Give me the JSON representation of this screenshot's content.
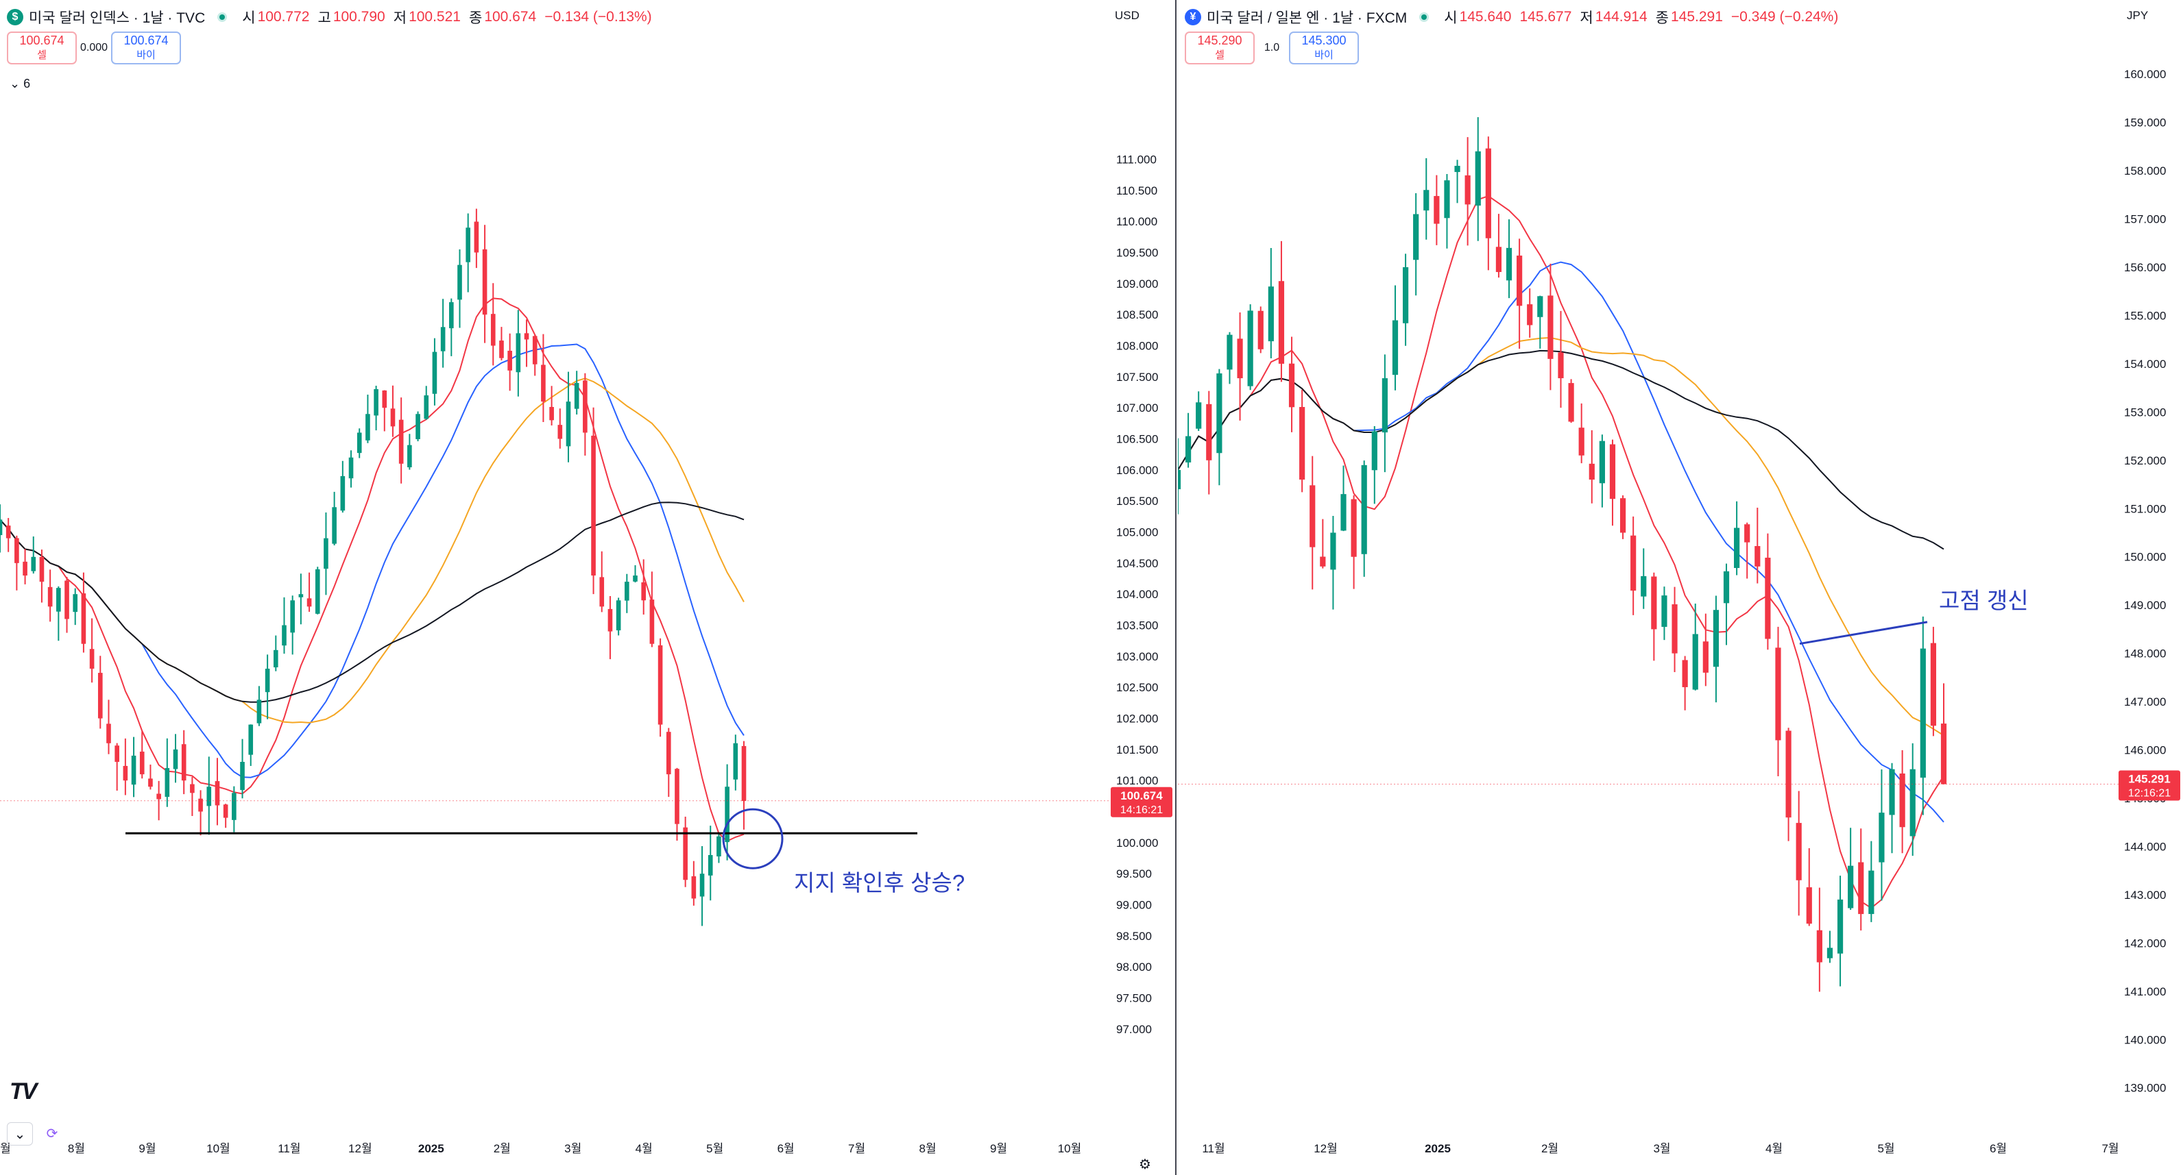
{
  "left": {
    "title": "미국 달러 인덱스 · 1날 · TVC",
    "icon_text": "$",
    "icon_color": "#089981",
    "ohlc": [
      {
        "k": "시",
        "v": "100.772"
      },
      {
        "k": "고",
        "v": "100.790"
      },
      {
        "k": "저",
        "v": "100.521"
      },
      {
        "k": "종",
        "v": "100.674"
      },
      {
        "k": "",
        "v": "−0.134 (−0.13%)"
      }
    ],
    "sell_price": "100.674",
    "sell_label": "셀",
    "spread": "0.000",
    "buy_price": "100.674",
    "buy_label": "바이",
    "collapse_label": "6",
    "currency": "USD",
    "price_tag": "100.674",
    "timer_tag": "14:16:21",
    "annotation": "지지 확인후 상승?"
  },
  "right": {
    "title": "미국 달러 / 일본 엔 · 1날 · FXCM",
    "icon_text": "¥",
    "icon_color": "#2962ff",
    "ohlc": [
      {
        "k": "시",
        "v": "145.640"
      },
      {
        "k": "",
        "v": "145.677"
      },
      {
        "k": "저",
        "v": "144.914"
      },
      {
        "k": "종",
        "v": "145.291"
      },
      {
        "k": "",
        "v": "−0.349 (−0.24%)"
      }
    ],
    "sell_price": "145.290",
    "sell_label": "셀",
    "spread": "1.0",
    "buy_price": "145.300",
    "buy_label": "바이",
    "currency": "JPY",
    "price_tag": "145.291",
    "timer_tag": "12:16:21",
    "annotation": "고점 갱신"
  },
  "chart_data": [
    {
      "type": "candlestick",
      "title": "미국 달러 인덱스",
      "ylim": [
        96.8,
        111.8
      ],
      "y_ticks": [
        "97.000",
        "97.500",
        "98.000",
        "98.500",
        "99.000",
        "99.500",
        "100.000",
        "100.500",
        "101.000",
        "101.500",
        "102.000",
        "102.500",
        "103.000",
        "103.500",
        "104.000",
        "104.500",
        "105.000",
        "105.500",
        "106.000",
        "106.500",
        "107.000",
        "107.500",
        "108.000",
        "108.500",
        "109.000",
        "109.500",
        "110.000",
        "110.500",
        "111.000"
      ],
      "x_ticks": [
        "월",
        "8월",
        "9월",
        "10월",
        "11월",
        "12월",
        "2025",
        "2월",
        "3월",
        "4월",
        "5월",
        "6월",
        "7월",
        "8월",
        "9월",
        "10월"
      ],
      "series": [
        {
          "name": "close",
          "values": [
            105.2,
            104.9,
            104.5,
            104.3,
            104.6,
            104.2,
            103.8,
            104.1,
            103.6,
            104.0,
            103.2,
            102.8,
            102.0,
            101.6,
            101.3,
            101.0,
            101.4,
            101.1,
            100.9,
            100.7,
            101.2,
            101.5,
            101.0,
            100.8,
            100.5,
            100.9,
            100.6,
            100.4,
            100.8,
            101.3,
            101.9,
            102.3,
            102.8,
            103.1,
            103.5,
            103.9,
            104.0,
            103.8,
            104.4,
            104.9,
            105.4,
            105.9,
            106.2,
            106.6,
            106.9,
            107.3,
            107.0,
            106.7,
            106.1,
            106.4,
            106.9,
            107.2,
            107.9,
            108.3,
            108.7,
            109.3,
            109.9,
            109.5,
            108.5,
            108.0,
            107.8,
            107.6,
            108.2,
            108.1,
            107.7,
            107.1,
            106.8,
            106.5,
            107.1,
            107.4,
            106.6,
            104.3,
            103.8,
            103.4,
            103.9,
            104.2,
            104.3,
            103.9,
            103.2,
            101.9,
            101.1,
            100.3,
            99.4,
            99.1,
            99.5,
            99.8,
            100.1,
            100.9,
            101.6,
            100.67
          ]
        }
      ],
      "ma": [
        {
          "name": "MA20",
          "color": "#f23645"
        },
        {
          "name": "MA50",
          "color": "#2962ff"
        },
        {
          "name": "MA100",
          "color": "#f5a623"
        },
        {
          "name": "MA200",
          "color": "#131722"
        }
      ],
      "horizontal_line": 100.15,
      "last_price": 100.674
    },
    {
      "type": "candlestick",
      "title": "미국 달러 / 일본 엔",
      "ylim": [
        138.4,
        160.4
      ],
      "y_ticks": [
        "139.000",
        "140.000",
        "141.000",
        "142.000",
        "143.000",
        "144.000",
        "145.000",
        "146.000",
        "147.000",
        "148.000",
        "149.000",
        "150.000",
        "151.000",
        "152.000",
        "153.000",
        "154.000",
        "155.000",
        "156.000",
        "157.000",
        "158.000",
        "159.000",
        "160.000"
      ],
      "x_ticks": [
        "11월",
        "12월",
        "2025",
        "2월",
        "3월",
        "4월",
        "5월",
        "6월",
        "7월"
      ],
      "series": [
        {
          "name": "close",
          "values": [
            151.8,
            152.5,
            153.2,
            152.0,
            153.8,
            154.6,
            153.7,
            155.1,
            154.3,
            155.6,
            154.0,
            153.1,
            151.6,
            150.2,
            149.8,
            150.5,
            151.3,
            150.0,
            151.9,
            152.6,
            153.7,
            154.9,
            156.0,
            157.1,
            157.6,
            156.9,
            157.8,
            158.1,
            157.3,
            158.4,
            156.6,
            155.9,
            156.4,
            155.2,
            154.8,
            155.4,
            154.1,
            153.7,
            152.8,
            152.1,
            151.6,
            152.4,
            151.2,
            150.5,
            149.3,
            149.6,
            148.5,
            149.2,
            148.0,
            147.3,
            148.4,
            147.6,
            148.9,
            149.7,
            150.6,
            150.3,
            149.8,
            148.3,
            146.2,
            144.6,
            143.3,
            142.4,
            141.6,
            141.9,
            142.9,
            143.6,
            142.6,
            143.5,
            144.7,
            145.6,
            144.4,
            145.6,
            148.1,
            146.5,
            145.29
          ]
        }
      ],
      "ma": [
        {
          "name": "MA20",
          "color": "#f23645"
        },
        {
          "name": "MA50",
          "color": "#2962ff"
        },
        {
          "name": "MA100",
          "color": "#f5a623"
        },
        {
          "name": "MA200",
          "color": "#131722"
        }
      ],
      "trend_line": [
        148.2,
        148.65
      ],
      "last_price": 145.291
    }
  ]
}
